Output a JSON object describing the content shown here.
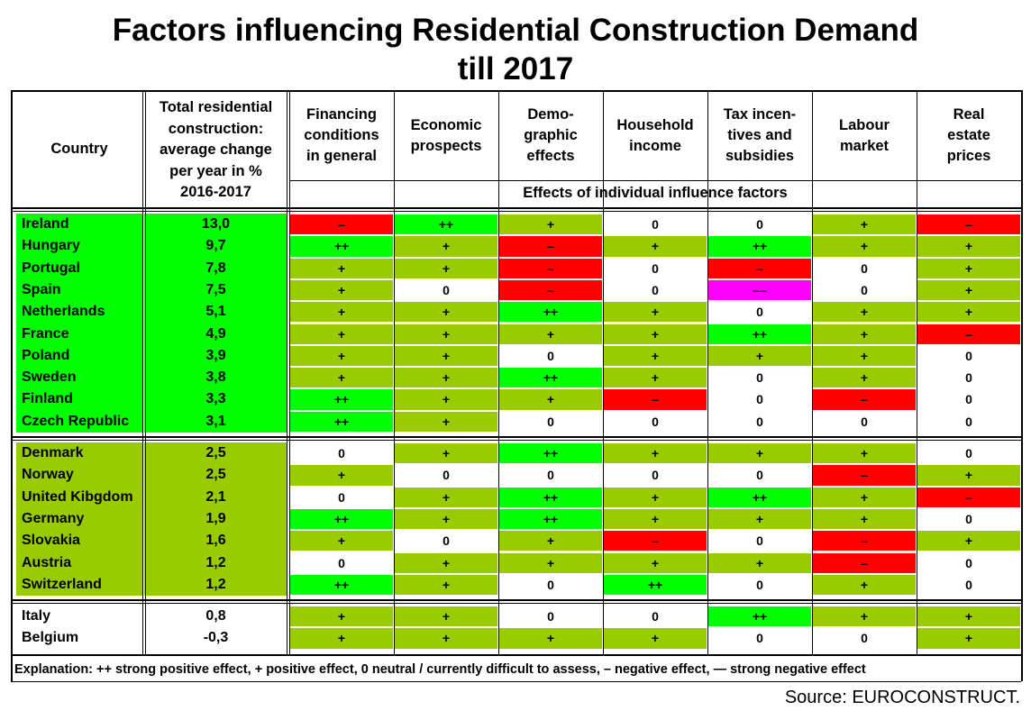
{
  "title_line1": "Factors influencing Residential Construction Demand",
  "title_line2": "till 2017",
  "header": {
    "country": "Country",
    "total_lines": [
      "Total residential",
      "construction:",
      "average change",
      "per year in %",
      "2016-2017"
    ],
    "factors": [
      [
        "Financing",
        "conditions",
        "in general"
      ],
      [
        "Economic",
        "prospects"
      ],
      [
        "Demo-",
        "graphic",
        "effects"
      ],
      [
        "Household",
        "income"
      ],
      [
        "Tax incen-",
        "tives and",
        "subsidies"
      ],
      [
        "Labour",
        "market"
      ],
      [
        "Real",
        "estate",
        "prices"
      ]
    ],
    "effects_label": "Effects of individual influence factors"
  },
  "colors": {
    "++": "#00ff00",
    "+": "#99cc00",
    "0": "#ffffff",
    "–": "#ff0000",
    "––": "#ff00ff",
    "group1_left": "#00ff00",
    "group2_left": "#99cc00",
    "group3_left": "#ffffff"
  },
  "chart_data": {
    "type": "table",
    "title": "Factors influencing Residential Construction Demand till 2017",
    "columns": [
      "Country",
      "Total residential construction: average change per year in % 2016-2017",
      "Financing conditions in general",
      "Economic prospects",
      "Demo-graphic effects",
      "Household income",
      "Tax incen-tives and subsidies",
      "Labour market",
      "Real estate prices"
    ],
    "groups": [
      {
        "rows": [
          {
            "country": "Ireland",
            "value": "13,0",
            "effects": [
              "–",
              "++",
              "+",
              "0",
              "0",
              "+",
              "–"
            ]
          },
          {
            "country": "Hungary",
            "value": "9,7",
            "effects": [
              "++",
              "+",
              "–",
              "+",
              "++",
              "+",
              "+"
            ]
          },
          {
            "country": "Portugal",
            "value": "7,8",
            "effects": [
              "+",
              "+",
              "–",
              "0",
              "–",
              "0",
              "+"
            ]
          },
          {
            "country": "Spain",
            "value": "7,5",
            "effects": [
              "+",
              "0",
              "–",
              "0",
              "––",
              "0",
              "+"
            ]
          },
          {
            "country": "Netherlands",
            "value": "5,1",
            "effects": [
              "+",
              "+",
              "++",
              "+",
              "0",
              "+",
              "+"
            ]
          },
          {
            "country": "France",
            "value": "4,9",
            "effects": [
              "+",
              "+",
              "+",
              "+",
              "++",
              "+",
              "–"
            ]
          },
          {
            "country": "Poland",
            "value": "3,9",
            "effects": [
              "+",
              "+",
              "0",
              "+",
              "+",
              "+",
              "0"
            ]
          },
          {
            "country": "Sweden",
            "value": "3,8",
            "effects": [
              "+",
              "+",
              "++",
              "+",
              "0",
              "+",
              "0"
            ]
          },
          {
            "country": "Finland",
            "value": "3,3",
            "effects": [
              "++",
              "+",
              "+",
              "–",
              "0",
              "–",
              "0"
            ]
          },
          {
            "country": "Czech Republic",
            "value": "3,1",
            "effects": [
              "++",
              "+",
              "0",
              "0",
              "0",
              "0",
              "0"
            ]
          }
        ]
      },
      {
        "rows": [
          {
            "country": "Denmark",
            "value": "2,5",
            "effects": [
              "0",
              "+",
              "++",
              "+",
              "+",
              "+",
              "0"
            ]
          },
          {
            "country": "Norway",
            "value": "2,5",
            "effects": [
              "+",
              "0",
              "0",
              "0",
              "0",
              "–",
              "+"
            ]
          },
          {
            "country": "United Kibgdom",
            "value": "2,1",
            "effects": [
              "0",
              "+",
              "++",
              "+",
              "++",
              "+",
              "–"
            ]
          },
          {
            "country": "Germany",
            "value": "1,9",
            "effects": [
              "++",
              "+",
              "++",
              "+",
              "+",
              "+",
              "0"
            ]
          },
          {
            "country": "Slovakia",
            "value": "1,6",
            "effects": [
              "+",
              "0",
              "+",
              "–",
              "0",
              "–",
              "+"
            ]
          },
          {
            "country": "Austria",
            "value": "1,2",
            "effects": [
              "0",
              "+",
              "+",
              "+",
              "+",
              "–",
              "0"
            ]
          },
          {
            "country": "Switzerland",
            "value": "1,2",
            "effects": [
              "++",
              "+",
              "0",
              "++",
              "0",
              "+",
              "0"
            ]
          }
        ]
      },
      {
        "rows": [
          {
            "country": "Italy",
            "value": "0,8",
            "effects": [
              "+",
              "+",
              "0",
              "0",
              "++",
              "+",
              "+"
            ]
          },
          {
            "country": "Belgium",
            "value": "-0,3",
            "effects": [
              "+",
              "+",
              "+",
              "+",
              "0",
              "0",
              "+"
            ]
          }
        ]
      }
    ]
  },
  "explanation": "Explanation: ++ strong positive effect, + positive effect, 0 neutral / currently difficult to assess, – negative effect, — strong negative effect",
  "source": "Source: EUROCONSTRUCT."
}
